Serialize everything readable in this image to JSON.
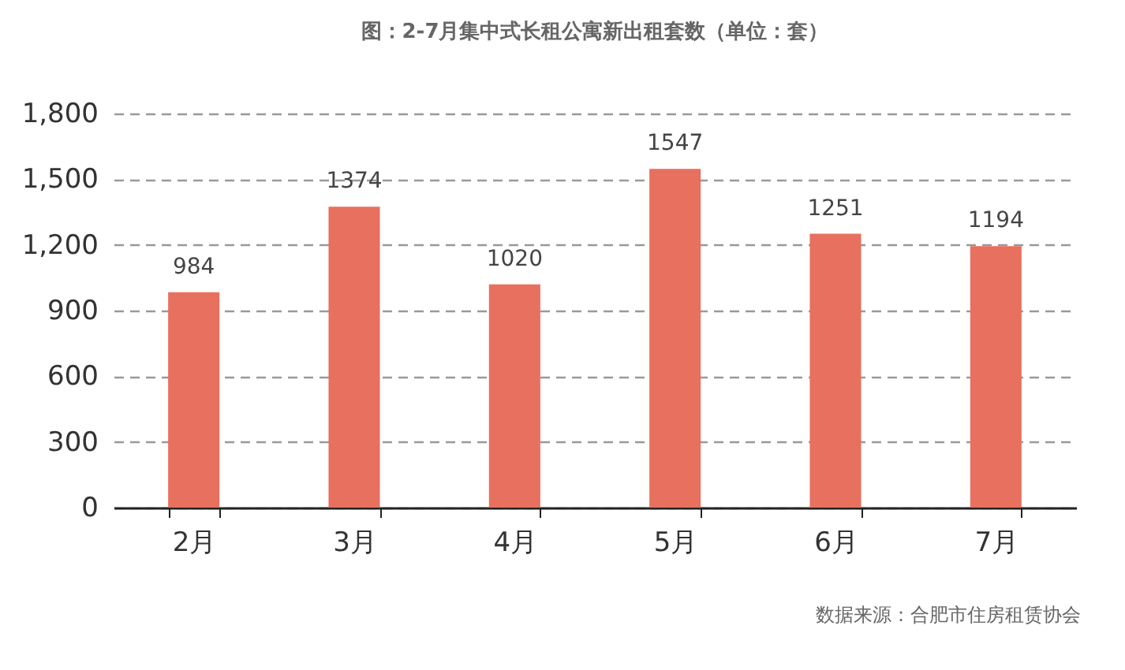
{
  "chart_data": {
    "type": "bar",
    "title": "图：2-7月集中式长租公寓新出租套数（单位：套）",
    "categories": [
      "2月",
      "3月",
      "4月",
      "5月",
      "6月",
      "7月"
    ],
    "values": [
      984,
      1374,
      1020,
      1547,
      1251,
      1194
    ],
    "color": "#e8705e",
    "ylim": [
      0,
      1800
    ],
    "yticks": [
      {
        "value": 0,
        "label": "0"
      },
      {
        "value": 300,
        "label": "300"
      },
      {
        "value": 600,
        "label": "600"
      },
      {
        "value": 900,
        "label": "900"
      },
      {
        "value": 1200,
        "label": "1,200"
      },
      {
        "value": 1500,
        "label": "1,500"
      },
      {
        "value": 1800,
        "label": "1,800"
      }
    ],
    "grid": "y",
    "data_labels": true,
    "annotations": [
      "数据来源：合肥市住房租赁协会"
    ]
  }
}
